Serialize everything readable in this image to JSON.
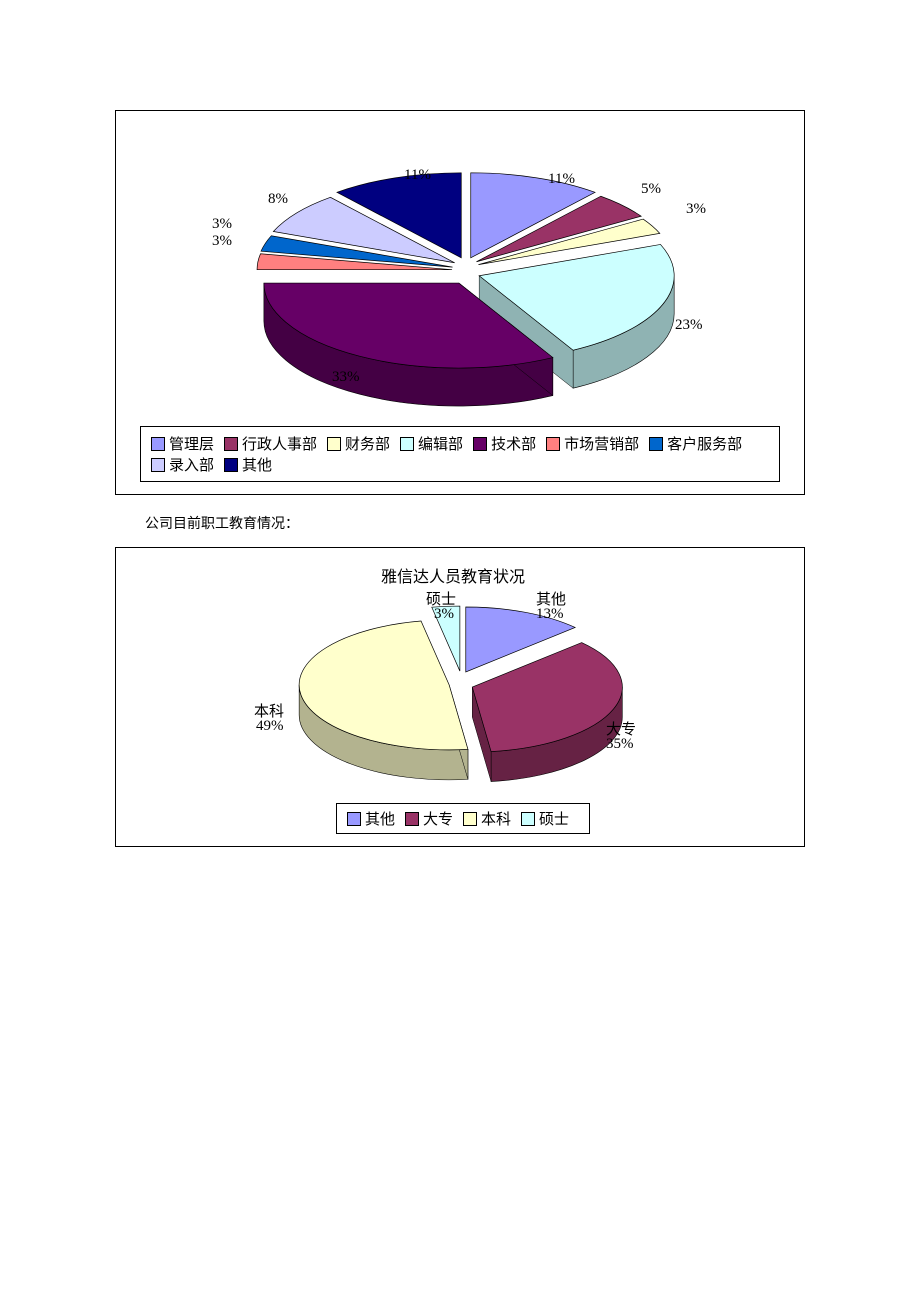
{
  "caption": "公司目前职工教育情况：",
  "chart1": {
    "type": "pie-3d-exploded",
    "background_color": "#ffffff",
    "border_color": "#000000",
    "slices": [
      {
        "label": "管理层",
        "value": 11,
        "pct": "11%",
        "color": "#9999ff",
        "side": "#666699"
      },
      {
        "label": "行政人事部",
        "value": 5,
        "pct": "5%",
        "color": "#993366",
        "side": "#662244"
      },
      {
        "label": "财务部",
        "value": 3,
        "pct": "3%",
        "color": "#ffffcc",
        "side": "#b3b38f"
      },
      {
        "label": "编辑部",
        "value": 23,
        "pct": "23%",
        "color": "#ccffff",
        "side": "#8fb3b3"
      },
      {
        "label": "技术部",
        "value": 33,
        "pct": "33%",
        "color": "#660066",
        "side": "#440044"
      },
      {
        "label": "市场营销部",
        "value": 3,
        "pct": "3%",
        "color": "#ff8080",
        "side": "#b35959"
      },
      {
        "label": "客户服务部",
        "value": 3,
        "pct": "3%",
        "color": "#0066cc",
        "side": "#00478f"
      },
      {
        "label": "录入部",
        "value": 8,
        "pct": "8%",
        "color": "#ccccff",
        "side": "#8f8fb3"
      },
      {
        "label": "其他",
        "value": 11,
        "pct": "11%",
        "color": "#000080",
        "side": "#000059"
      }
    ],
    "legend_border_color": "#000000",
    "label_fontsize": 15
  },
  "chart2": {
    "type": "pie-3d-exploded",
    "title": "雅信达人员教育状况",
    "background_color": "#ffffff",
    "border_color": "#000000",
    "slices": [
      {
        "label": "其他",
        "value": 13,
        "pct": "13%",
        "color": "#9999ff",
        "side": "#666699"
      },
      {
        "label": "大专",
        "value": 35,
        "pct": "35%",
        "color": "#993366",
        "side": "#662244"
      },
      {
        "label": "本科",
        "value": 49,
        "pct": "49%",
        "color": "#ffffcc",
        "side": "#b3b38f"
      },
      {
        "label": "硕士",
        "value": 3,
        "pct": "3%",
        "color": "#ccffff",
        "side": "#8fb3b3"
      }
    ],
    "legend_border_color": "#000000",
    "label_fontsize": 15
  }
}
